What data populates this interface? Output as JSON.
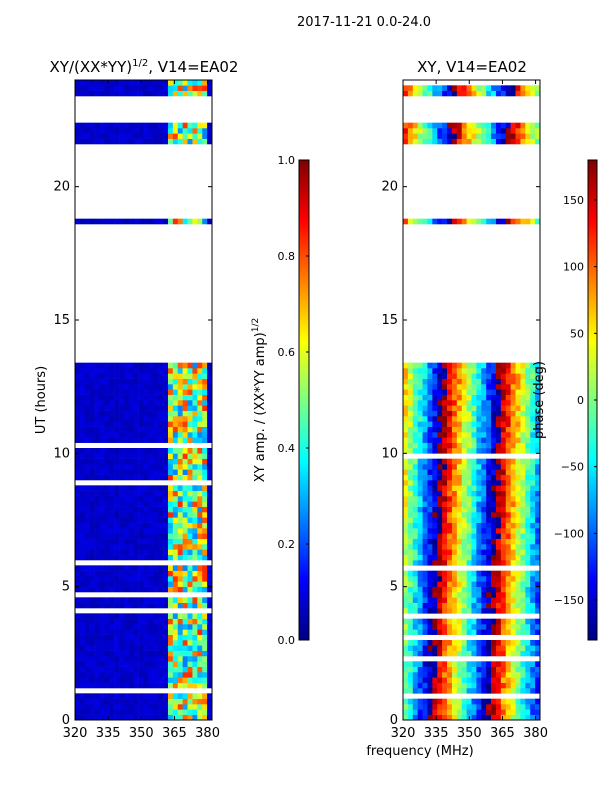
{
  "suptitle": "2017-11-21 0.0-24.0",
  "xlabel_shared": "frequency (MHz)",
  "colors": {
    "jet": [
      "#00007f",
      "#0000ff",
      "#007fff",
      "#00ffff",
      "#7fff7f",
      "#ffff00",
      "#ff7f00",
      "#ff0000",
      "#7f0000"
    ],
    "background": "#ffffff",
    "axis": "#000000"
  },
  "chart_data": [
    {
      "type": "heatmap",
      "title_prefix": "XY/(XX*YY)",
      "title_exponent": "1/2",
      "title_suffix": ", V14=EA02",
      "xlabel": "",
      "ylabel": "UT (hours)",
      "xlim": [
        320,
        382
      ],
      "ylim": [
        0,
        24
      ],
      "xticks": [
        320,
        335,
        350,
        365,
        380
      ],
      "yticks": [
        0,
        5,
        10,
        15,
        20
      ],
      "colorbar": {
        "label": "XY amp. / (XX*YY amp)",
        "label_exponent": "1/2",
        "vmin": 0.0,
        "vmax": 1.0,
        "ticks": [
          "0.0",
          "0.2",
          "0.4",
          "0.6",
          "0.8",
          "1.0"
        ],
        "tick_values": [
          0.0,
          0.2,
          0.4,
          0.6,
          0.8,
          1.0
        ]
      },
      "flagged_ut_ranges": [
        [
          13.5,
          18.5
        ],
        [
          18.9,
          21.5
        ],
        [
          22.5,
          23.3
        ]
      ],
      "bright_band_mhz": [
        362,
        380
      ],
      "typical_background_value": 0.05,
      "typical_band_value": 0.55
    },
    {
      "type": "heatmap",
      "title": "XY, V14=EA02",
      "xlabel": "",
      "ylabel": "",
      "xlim": [
        320,
        382
      ],
      "ylim": [
        0,
        24
      ],
      "xticks": [
        320,
        335,
        350,
        365,
        380
      ],
      "yticks": [
        0,
        5,
        10,
        15,
        20
      ],
      "colorbar": {
        "label": "phase (deg)",
        "vmin": -180,
        "vmax": 180,
        "ticks": [
          "150",
          "100",
          "50",
          "0",
          "−50",
          "−100",
          "−150"
        ],
        "tick_values": [
          150,
          100,
          50,
          0,
          -50,
          -100,
          -150
        ]
      },
      "flagged_ut_ranges": [
        [
          13.5,
          18.5
        ],
        [
          18.9,
          21.5
        ],
        [
          22.5,
          23.3
        ]
      ],
      "phase_slope_deg_per_mhz": -14
    }
  ]
}
